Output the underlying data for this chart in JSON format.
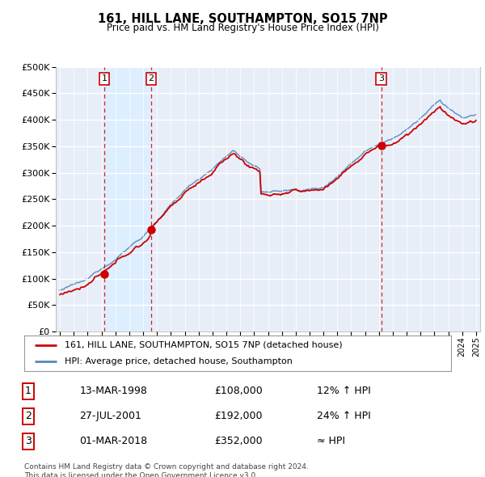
{
  "title": "161, HILL LANE, SOUTHAMPTON, SO15 7NP",
  "subtitle": "Price paid vs. HM Land Registry's House Price Index (HPI)",
  "legend_label_red": "161, HILL LANE, SOUTHAMPTON, SO15 7NP (detached house)",
  "legend_label_blue": "HPI: Average price, detached house, Southampton",
  "sale_points": [
    {
      "date_num": 1998.21,
      "price": 108000,
      "label": "1"
    },
    {
      "date_num": 2001.57,
      "price": 192000,
      "label": "2"
    },
    {
      "date_num": 2018.17,
      "price": 352000,
      "label": "3"
    }
  ],
  "table_rows": [
    {
      "num": "1",
      "date": "13-MAR-1998",
      "price": "£108,000",
      "change": "12% ↑ HPI"
    },
    {
      "num": "2",
      "date": "27-JUL-2001",
      "price": "£192,000",
      "change": "24% ↑ HPI"
    },
    {
      "num": "3",
      "date": "01-MAR-2018",
      "price": "£352,000",
      "change": "≈ HPI"
    }
  ],
  "footer": "Contains HM Land Registry data © Crown copyright and database right 2024.\nThis data is licensed under the Open Government Licence v3.0.",
  "red_color": "#cc0000",
  "blue_color": "#5588bb",
  "vline_color": "#cc0000",
  "shade_color": "#ddeeff",
  "background_color": "#e8eef8",
  "ylim": [
    0,
    500000
  ],
  "xlim_start": 1994.7,
  "xlim_end": 2025.3
}
